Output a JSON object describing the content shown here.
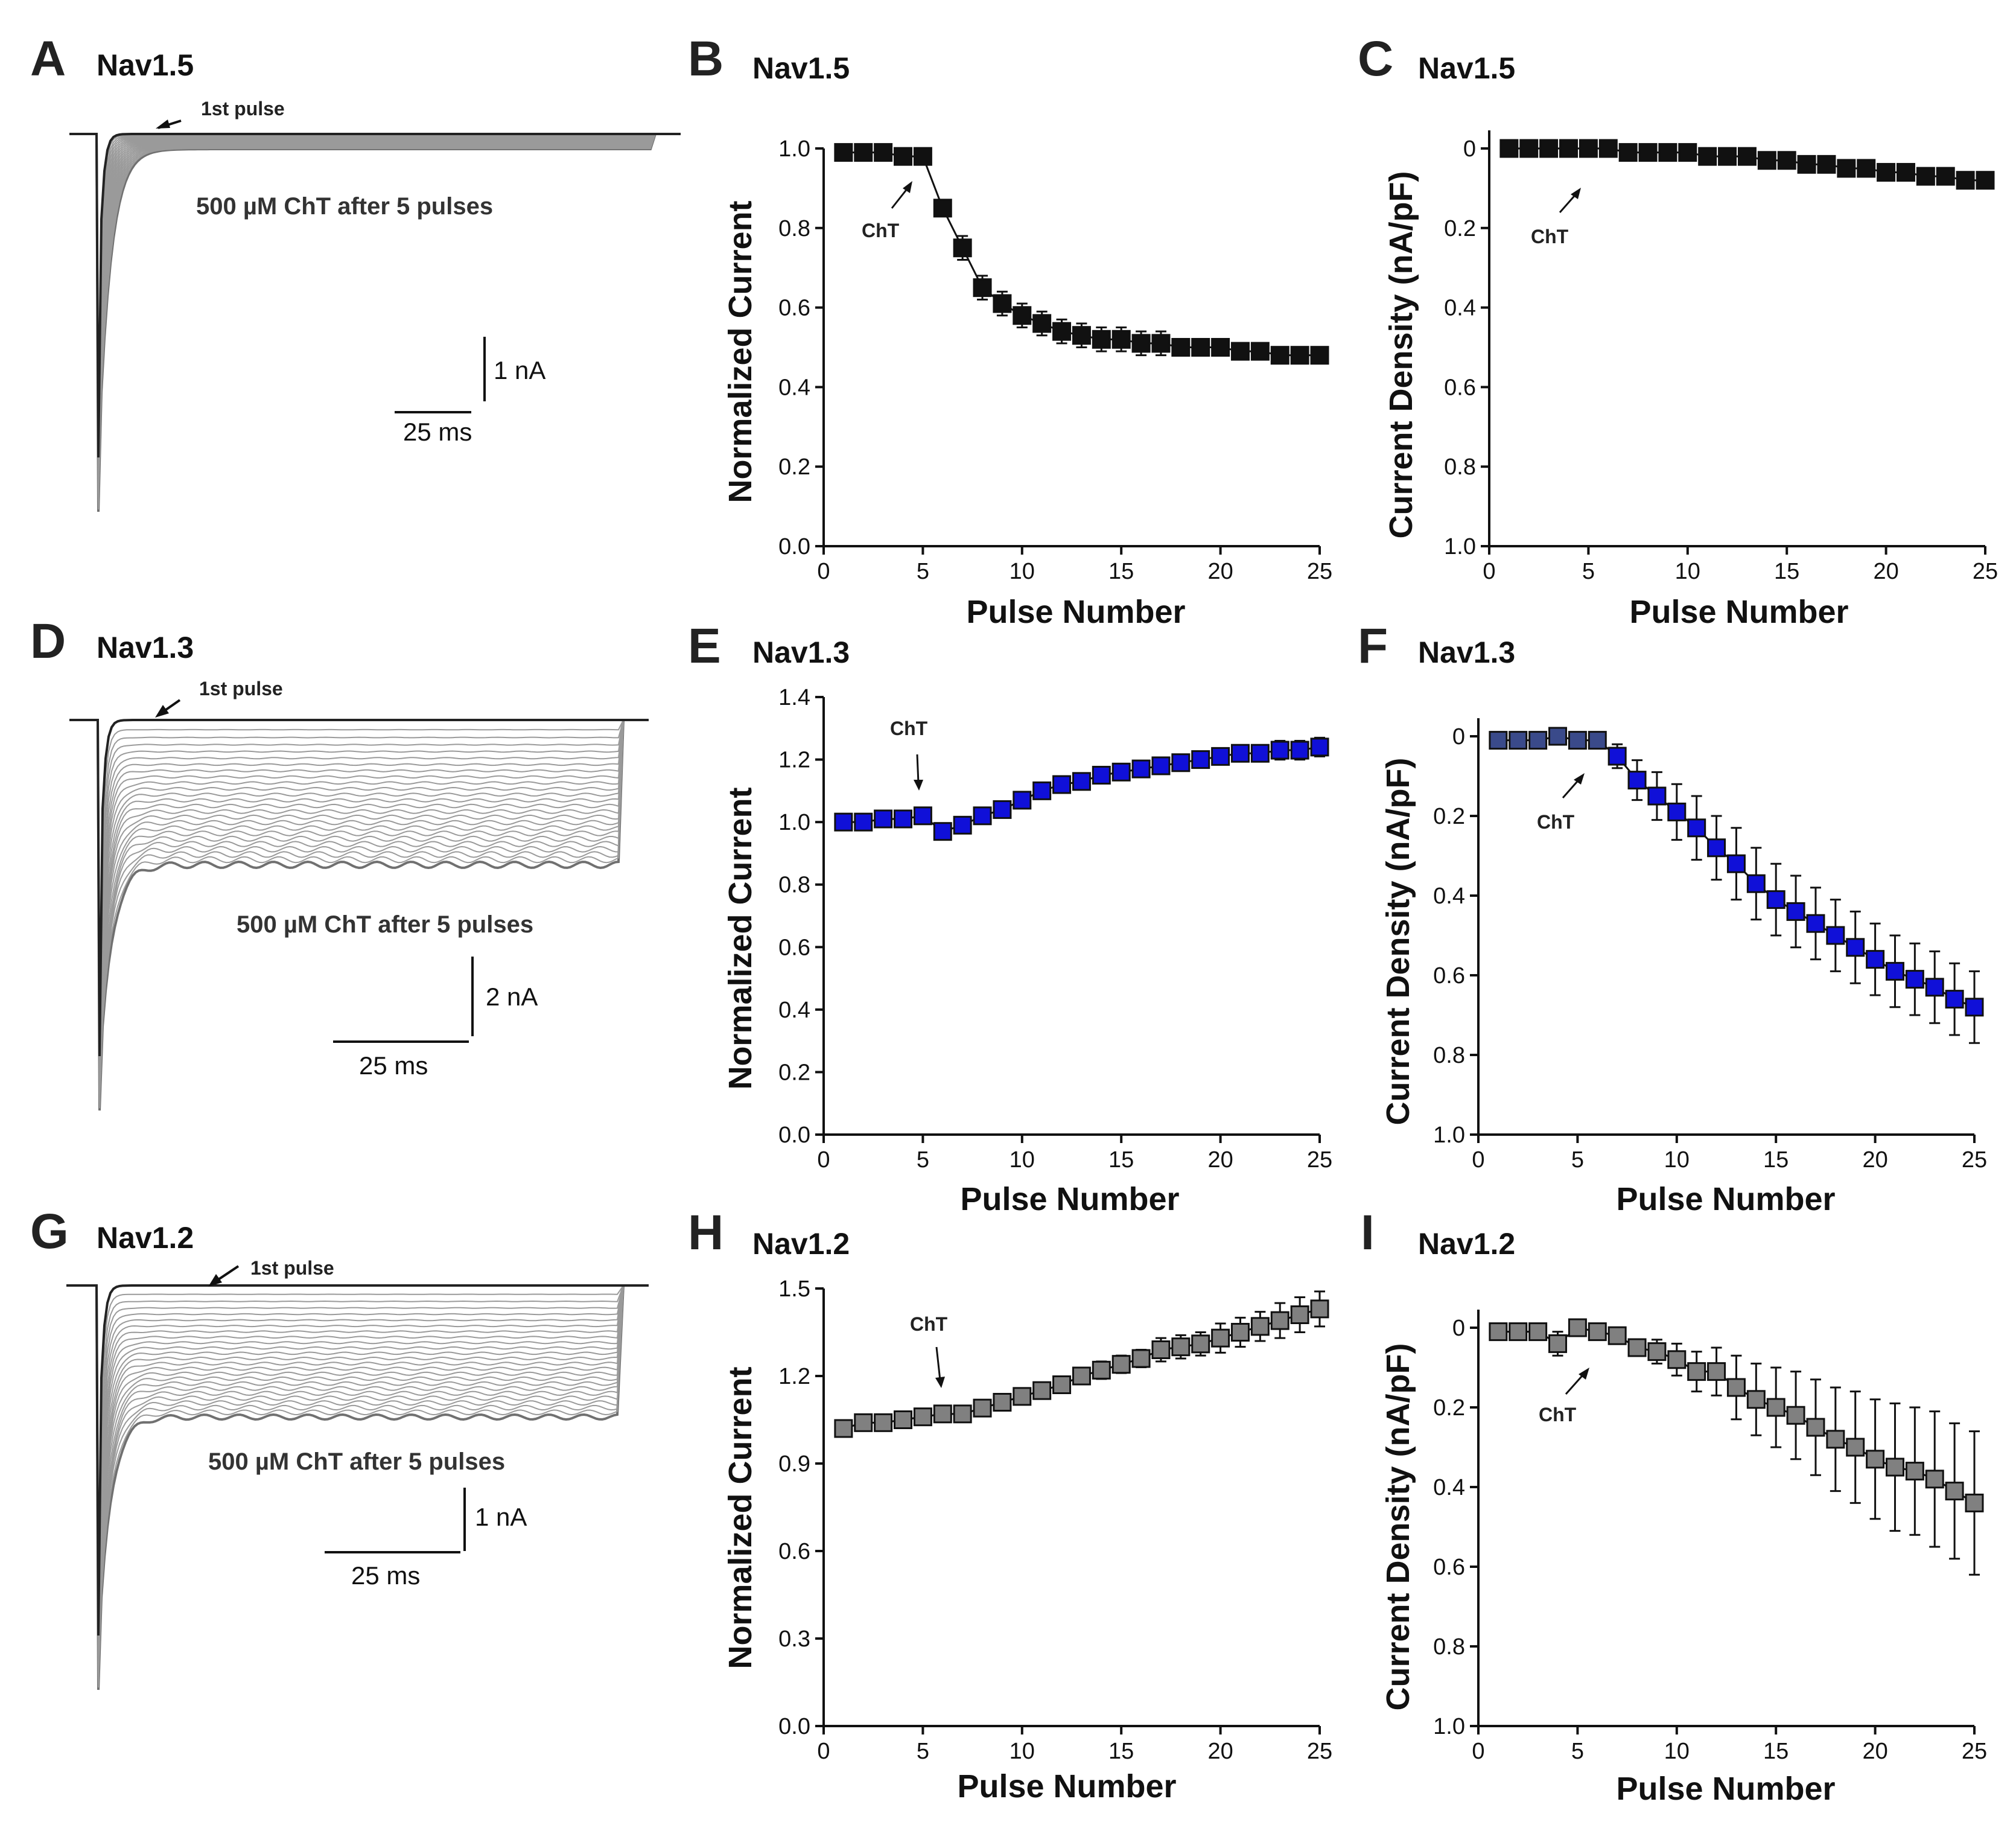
{
  "figure": {
    "panel_labels": [
      "A",
      "B",
      "C",
      "D",
      "E",
      "F",
      "G",
      "H",
      "I"
    ]
  },
  "traces": [
    {
      "label": "A",
      "title": "Nav1.5",
      "first_pulse": "1st pulse",
      "condition": "500 µM ChT after 5 pulses",
      "scale_y": "1 nA",
      "scale_x": "25 ms",
      "n_traces": 25
    },
    {
      "label": "D",
      "title": "Nav1.3",
      "first_pulse": "1st pulse",
      "condition": "500 µM ChT after 5 pulses",
      "scale_y": "2 nA",
      "scale_x": "25 ms",
      "n_traces": 25
    },
    {
      "label": "G",
      "title": "Nav1.2",
      "first_pulse": "1st pulse",
      "condition": "500 µM ChT after 5 pulses",
      "scale_y": "1 nA",
      "scale_x": "25 ms",
      "n_traces": 25
    }
  ],
  "chart_data": [
    {
      "label": "B",
      "type": "scatter",
      "title": "Nav1.5",
      "xlabel": "Pulse Number",
      "ylabel": "Normalized Current",
      "xlim": [
        0,
        25
      ],
      "ylim": [
        0,
        1.0
      ],
      "yticks": [
        "0.0",
        "0.2",
        "0.4",
        "0.6",
        "0.8",
        "1.0"
      ],
      "xticks": [
        "0",
        "5",
        "10",
        "15",
        "20",
        "25"
      ],
      "inverted": false,
      "marker_color": "#111111",
      "annotation": "ChT",
      "x": [
        1,
        2,
        3,
        4,
        5,
        6,
        7,
        8,
        9,
        10,
        11,
        12,
        13,
        14,
        15,
        16,
        17,
        18,
        19,
        20,
        21,
        22,
        23,
        24,
        25
      ],
      "y": [
        0.99,
        0.99,
        0.99,
        0.98,
        0.98,
        0.85,
        0.75,
        0.65,
        0.61,
        0.58,
        0.56,
        0.54,
        0.53,
        0.52,
        0.52,
        0.51,
        0.51,
        0.5,
        0.5,
        0.5,
        0.49,
        0.49,
        0.48,
        0.48,
        0.48
      ],
      "err": [
        0.01,
        0.01,
        0.01,
        0.01,
        0.01,
        0.02,
        0.03,
        0.03,
        0.03,
        0.03,
        0.03,
        0.03,
        0.03,
        0.03,
        0.03,
        0.03,
        0.03,
        0.02,
        0.02,
        0.02,
        0.02,
        0.02,
        0.02,
        0.02,
        0.02
      ]
    },
    {
      "label": "C",
      "type": "scatter",
      "title": "Nav1.5",
      "xlabel": "Pulse Number",
      "ylabel": "Current Density (nA/pF)",
      "xlim": [
        0,
        25
      ],
      "ylim": [
        1.0,
        0
      ],
      "yticks": [
        "0",
        "0.2",
        "0.4",
        "0.6",
        "0.8",
        "1.0"
      ],
      "xticks": [
        "0",
        "5",
        "10",
        "15",
        "20",
        "25"
      ],
      "inverted": true,
      "marker_color": "#111111",
      "annotation": "ChT",
      "x": [
        1,
        2,
        3,
        4,
        5,
        6,
        7,
        8,
        9,
        10,
        11,
        12,
        13,
        14,
        15,
        16,
        17,
        18,
        19,
        20,
        21,
        22,
        23,
        24,
        25
      ],
      "y": [
        0.0,
        0.0,
        0.0,
        0.0,
        0.0,
        0.0,
        0.01,
        0.01,
        0.01,
        0.01,
        0.02,
        0.02,
        0.02,
        0.03,
        0.03,
        0.04,
        0.04,
        0.05,
        0.05,
        0.06,
        0.06,
        0.07,
        0.07,
        0.08,
        0.08
      ],
      "err": [
        0,
        0,
        0,
        0,
        0,
        0,
        0,
        0,
        0,
        0,
        0,
        0,
        0,
        0,
        0,
        0,
        0,
        0,
        0,
        0,
        0,
        0,
        0,
        0,
        0
      ]
    },
    {
      "label": "E",
      "type": "scatter",
      "title": "Nav1.3",
      "xlabel": "Pulse Number",
      "ylabel": "Normalized Current",
      "xlim": [
        0,
        25
      ],
      "ylim": [
        0,
        1.4
      ],
      "yticks": [
        "0.0",
        "0.2",
        "0.4",
        "0.6",
        "0.8",
        "1.0",
        "1.2",
        "1.4"
      ],
      "xticks": [
        "0",
        "5",
        "10",
        "15",
        "20",
        "25"
      ],
      "inverted": false,
      "marker_color": "#1010d8",
      "annotation": "ChT",
      "x": [
        1,
        2,
        3,
        4,
        5,
        6,
        7,
        8,
        9,
        10,
        11,
        12,
        13,
        14,
        15,
        16,
        17,
        18,
        19,
        20,
        21,
        22,
        23,
        24,
        25
      ],
      "y": [
        1.0,
        1.0,
        1.01,
        1.01,
        1.02,
        0.97,
        0.99,
        1.02,
        1.04,
        1.07,
        1.1,
        1.12,
        1.13,
        1.15,
        1.16,
        1.17,
        1.18,
        1.19,
        1.2,
        1.21,
        1.22,
        1.22,
        1.23,
        1.23,
        1.24
      ],
      "err": [
        0.01,
        0.01,
        0.01,
        0.01,
        0.01,
        0.01,
        0.01,
        0.01,
        0.01,
        0.01,
        0.01,
        0.01,
        0.01,
        0.01,
        0.01,
        0.02,
        0.02,
        0.02,
        0.02,
        0.02,
        0.02,
        0.02,
        0.03,
        0.03,
        0.03
      ]
    },
    {
      "label": "F",
      "type": "scatter",
      "title": "Nav1.3",
      "xlabel": "Pulse Number",
      "ylabel": "Current Density (nA/pF)",
      "xlim": [
        0,
        25
      ],
      "ylim": [
        1.0,
        0
      ],
      "yticks": [
        "0",
        "0.2",
        "0.4",
        "0.6",
        "0.8",
        "1.0"
      ],
      "xticks": [
        "0",
        "5",
        "10",
        "15",
        "20",
        "25"
      ],
      "inverted": true,
      "marker_color": "#1010d8",
      "first_color": "#3a4a8a",
      "annotation": "ChT",
      "x": [
        1,
        2,
        3,
        4,
        5,
        6,
        7,
        8,
        9,
        10,
        11,
        12,
        13,
        14,
        15,
        16,
        17,
        18,
        19,
        20,
        21,
        22,
        23,
        24,
        25
      ],
      "y": [
        0.01,
        0.01,
        0.01,
        0.0,
        0.01,
        0.01,
        0.05,
        0.11,
        0.15,
        0.19,
        0.23,
        0.28,
        0.32,
        0.37,
        0.41,
        0.44,
        0.47,
        0.5,
        0.53,
        0.56,
        0.59,
        0.61,
        0.63,
        0.66,
        0.68
      ],
      "err": [
        0.01,
        0.01,
        0.01,
        0.01,
        0.02,
        0.02,
        0.03,
        0.05,
        0.06,
        0.07,
        0.08,
        0.08,
        0.09,
        0.09,
        0.09,
        0.09,
        0.09,
        0.09,
        0.09,
        0.09,
        0.09,
        0.09,
        0.09,
        0.09,
        0.09
      ]
    },
    {
      "label": "H",
      "type": "scatter",
      "title": "Nav1.2",
      "xlabel": "Pulse Number",
      "ylabel": "Normalized Current",
      "xlim": [
        0,
        25
      ],
      "ylim": [
        0,
        1.5
      ],
      "yticks": [
        "0.0",
        "0.3",
        "0.6",
        "0.9",
        "1.2",
        "1.5"
      ],
      "xticks": [
        "0",
        "5",
        "10",
        "15",
        "20",
        "25"
      ],
      "inverted": false,
      "marker_color": "#808080",
      "annotation": "ChT",
      "x": [
        1,
        2,
        3,
        4,
        5,
        6,
        7,
        8,
        9,
        10,
        11,
        12,
        13,
        14,
        15,
        16,
        17,
        18,
        19,
        20,
        21,
        22,
        23,
        24,
        25
      ],
      "y": [
        1.02,
        1.04,
        1.04,
        1.05,
        1.06,
        1.07,
        1.07,
        1.09,
        1.11,
        1.13,
        1.15,
        1.17,
        1.2,
        1.22,
        1.24,
        1.26,
        1.29,
        1.3,
        1.31,
        1.33,
        1.35,
        1.37,
        1.39,
        1.41,
        1.43
      ],
      "err": [
        0.02,
        0.02,
        0.02,
        0.02,
        0.02,
        0.02,
        0.02,
        0.02,
        0.02,
        0.02,
        0.02,
        0.02,
        0.02,
        0.03,
        0.03,
        0.03,
        0.04,
        0.04,
        0.04,
        0.05,
        0.05,
        0.05,
        0.06,
        0.06,
        0.06
      ]
    },
    {
      "label": "I",
      "type": "scatter",
      "title": "Nav1.2",
      "xlabel": "Pulse Number",
      "ylabel": "Current Density (nA/pF)",
      "xlim": [
        0,
        25
      ],
      "ylim": [
        1.0,
        0
      ],
      "yticks": [
        "0",
        "0.2",
        "0.4",
        "0.6",
        "0.8",
        "1.0"
      ],
      "xticks": [
        "0",
        "5",
        "10",
        "15",
        "20",
        "25"
      ],
      "inverted": true,
      "marker_color": "#808080",
      "annotation": "ChT",
      "x": [
        1,
        2,
        3,
        4,
        5,
        6,
        7,
        8,
        9,
        10,
        11,
        12,
        13,
        14,
        15,
        16,
        17,
        18,
        19,
        20,
        21,
        22,
        23,
        24,
        25
      ],
      "y": [
        0.01,
        0.01,
        0.01,
        0.04,
        0.0,
        0.01,
        0.02,
        0.05,
        0.06,
        0.08,
        0.11,
        0.11,
        0.15,
        0.18,
        0.2,
        0.22,
        0.25,
        0.28,
        0.3,
        0.33,
        0.35,
        0.36,
        0.38,
        0.41,
        0.44
      ],
      "err": [
        0.01,
        0.01,
        0.01,
        0.03,
        0.01,
        0.01,
        0.01,
        0.02,
        0.03,
        0.04,
        0.05,
        0.06,
        0.08,
        0.09,
        0.1,
        0.11,
        0.12,
        0.13,
        0.14,
        0.15,
        0.16,
        0.16,
        0.17,
        0.17,
        0.18
      ]
    }
  ]
}
